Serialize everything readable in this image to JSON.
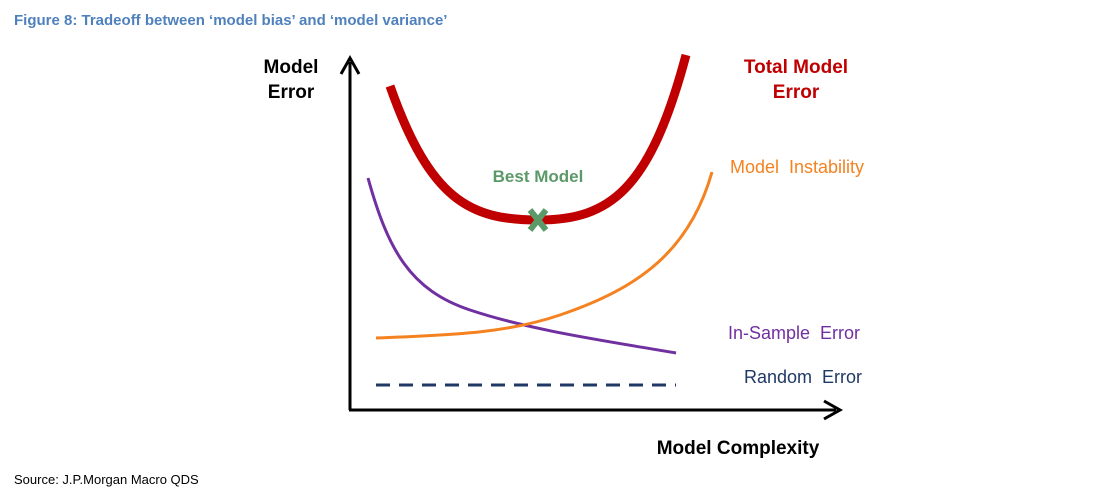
{
  "figure": {
    "title": "Figure 8: Tradeoff between ‘model bias’ and ‘model variance’",
    "source": "Source: J.P.Morgan Macro QDS"
  },
  "axes": {
    "y_label_line1": "Model",
    "y_label_line2": "Error",
    "x_label": "Model Complexity"
  },
  "curves": {
    "total": {
      "label_line1": "Total Model",
      "label_line2": "Error",
      "color": "#c00000"
    },
    "instability": {
      "label": "Model  Instability",
      "color": "#f58220"
    },
    "in_sample": {
      "label": "In-Sample  Error",
      "color": "#7030a0"
    },
    "random": {
      "label": "Random  Error",
      "color": "#1f3864"
    }
  },
  "best_model": {
    "label": "Best Model",
    "color": "#5b9a68"
  }
}
